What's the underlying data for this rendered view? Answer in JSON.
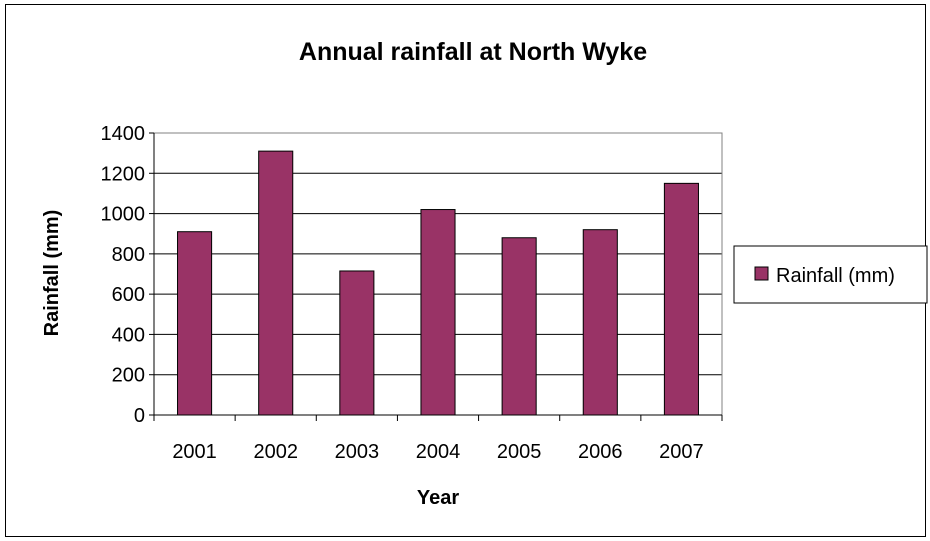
{
  "chart_data": {
    "type": "bar",
    "title": "Annual rainfall at North Wyke",
    "xlabel": "Year",
    "ylabel": "Rainfall (mm)",
    "categories": [
      "2001",
      "2002",
      "2003",
      "2004",
      "2005",
      "2006",
      "2007"
    ],
    "series": [
      {
        "name": "Rainfall (mm)",
        "values": [
          910,
          1310,
          715,
          1020,
          880,
          920,
          1150
        ]
      }
    ],
    "ylim": [
      0,
      1400
    ],
    "yticks": [
      "0",
      "200",
      "400",
      "600",
      "800",
      "1000",
      "1200",
      "1400"
    ],
    "grid": true,
    "legend_position": "right",
    "colors": {
      "bar": "#993366",
      "bar_stroke": "#000000",
      "grid": "#000000"
    }
  }
}
